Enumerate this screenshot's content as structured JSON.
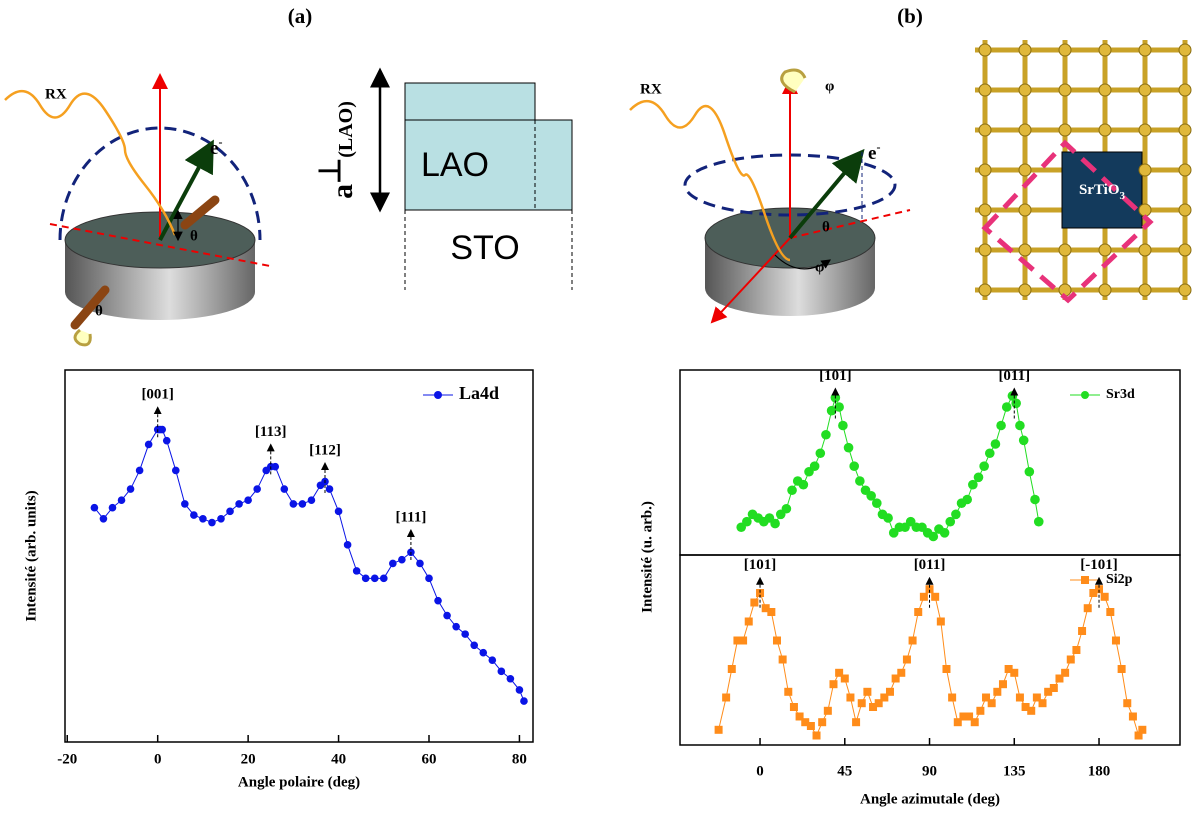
{
  "figure": {
    "label_a": "(a)",
    "label_b": "(b)"
  },
  "diagrams": {
    "a_source": "RX",
    "a_electron": "e",
    "a_electron_sup": "-",
    "a_theta_1": "θ",
    "a_theta_2": "θ",
    "lattice_param": "a",
    "lattice_perp": "⊥",
    "lattice_sub": "(LAO)",
    "film": "LAO",
    "substrate": "STO",
    "b_source": "RX",
    "b_electron": "e",
    "b_electron_sup": "-",
    "b_phi_1": "φ",
    "b_phi_2": "φ",
    "b_theta": "θ",
    "crystal": "SrTiO",
    "crystal_sub": "3"
  },
  "chart_data": [
    {
      "type": "scatter",
      "xlabel": "Angle polaire (deg)",
      "ylabel": "Intensité (arb. units)",
      "xlim": [
        -20.5,
        83
      ],
      "ylim": [
        0,
        100
      ],
      "xticks": [
        -20,
        0,
        20,
        40,
        60,
        80
      ],
      "legend": "upper right",
      "series": [
        {
          "name": "La4d",
          "color": "#0a14e6",
          "marker": "circle",
          "x": [
            -14,
            -12,
            -10,
            -8,
            -6,
            -4,
            -2,
            0,
            0.5,
            1,
            2,
            4,
            6,
            8,
            10,
            12,
            14,
            16,
            18,
            20,
            22,
            24,
            25,
            26,
            28,
            30,
            32,
            34,
            36,
            37,
            38,
            40,
            42,
            44,
            46,
            48,
            50,
            52,
            54,
            56,
            58,
            60,
            62,
            64,
            66,
            68,
            70,
            72,
            74,
            76,
            78,
            80,
            81
          ],
          "values": [
            63,
            60,
            63,
            65,
            68,
            73,
            80,
            84,
            84,
            84,
            81,
            73,
            64,
            61,
            60,
            59,
            60,
            62,
            64,
            65,
            68,
            73,
            74,
            74,
            68,
            64,
            64,
            65,
            69,
            70,
            68,
            62,
            53,
            46,
            44,
            44,
            44,
            48,
            49,
            51,
            48,
            44,
            38,
            34,
            31,
            29,
            26,
            24,
            22,
            19,
            17,
            14,
            11
          ]
        }
      ],
      "annotations": [
        {
          "text": "[001]",
          "x": 0,
          "y": 90
        },
        {
          "text": "[113]",
          "x": 25,
          "y": 80
        },
        {
          "text": "[112]",
          "x": 37,
          "y": 75
        },
        {
          "text": "[111]",
          "x": 56,
          "y": 57
        }
      ]
    },
    {
      "type": "scatter",
      "ylabel": "Intensité (u. arb.)",
      "xlim": [
        -42.5,
        223
      ],
      "ylim": [
        0,
        100
      ],
      "legend": "upper right",
      "series": [
        {
          "name": "Sr3d",
          "color": "#22dd22",
          "marker": "circle",
          "x": [
            -10,
            -7,
            -4,
            -1,
            2,
            5,
            8,
            11,
            14,
            17,
            20,
            23,
            26,
            29,
            32,
            35,
            38,
            40,
            42,
            44,
            47,
            50,
            53,
            56,
            59,
            62,
            65,
            68,
            71,
            74,
            77,
            80,
            83,
            86,
            89,
            92,
            95,
            98,
            101,
            104,
            107,
            110,
            113,
            116,
            119,
            122,
            125,
            128,
            131,
            134,
            136,
            138,
            140,
            143,
            146,
            148
          ],
          "values": [
            15,
            18,
            22,
            20,
            18,
            20,
            17,
            22,
            25,
            35,
            40,
            38,
            45,
            48,
            55,
            65,
            78,
            85,
            80,
            70,
            58,
            48,
            40,
            35,
            32,
            28,
            22,
            20,
            12,
            15,
            15,
            18,
            15,
            15,
            12,
            10,
            14,
            12,
            18,
            22,
            28,
            30,
            38,
            42,
            48,
            55,
            60,
            70,
            80,
            86,
            82,
            70,
            62,
            45,
            30,
            18
          ]
        }
      ],
      "annotations": [
        {
          "text": "[101]",
          "x": 40,
          "y": 90
        },
        {
          "text": "[011]",
          "x": 135,
          "y": 90
        }
      ]
    },
    {
      "type": "scatter",
      "xlabel": "Angle azimutale (deg)",
      "xlim": [
        -42.5,
        223
      ],
      "ylim": [
        0,
        100
      ],
      "xticks": [
        0,
        45,
        90,
        135,
        180
      ],
      "legend": "upper right",
      "series": [
        {
          "name": "Si2p",
          "color": "#ff8c1a",
          "marker": "square",
          "x": [
            -22,
            -18,
            -15,
            -12,
            -9,
            -6,
            -3,
            0,
            3,
            6,
            9,
            12,
            15,
            18,
            21,
            24,
            27,
            30,
            33,
            36,
            39,
            42,
            45,
            48,
            51,
            54,
            57,
            60,
            63,
            66,
            69,
            72,
            75,
            78,
            81,
            84,
            87,
            90,
            93,
            96,
            99,
            102,
            105,
            108,
            111,
            114,
            117,
            120,
            123,
            126,
            129,
            132,
            135,
            138,
            141,
            144,
            147,
            150,
            153,
            156,
            159,
            162,
            165,
            168,
            171,
            174,
            177,
            180,
            183,
            186,
            189,
            192,
            195,
            198,
            201,
            203
          ],
          "values": [
            8,
            25,
            40,
            55,
            55,
            65,
            75,
            80,
            72,
            70,
            55,
            45,
            28,
            20,
            15,
            12,
            10,
            5,
            12,
            18,
            32,
            38,
            35,
            25,
            12,
            22,
            28,
            20,
            22,
            25,
            28,
            35,
            38,
            45,
            55,
            70,
            78,
            82,
            78,
            65,
            40,
            25,
            12,
            15,
            15,
            12,
            18,
            25,
            22,
            28,
            32,
            40,
            38,
            25,
            20,
            18,
            25,
            22,
            28,
            30,
            35,
            38,
            45,
            50,
            60,
            72,
            80,
            82,
            78,
            70,
            55,
            40,
            22,
            15,
            5,
            8
          ]
        }
      ],
      "annotations": [
        {
          "text": "[101]",
          "x": 0,
          "y": 88
        },
        {
          "text": "[011]",
          "x": 90,
          "y": 88
        },
        {
          "text": "[-101]",
          "x": 180,
          "y": 88
        }
      ]
    }
  ]
}
